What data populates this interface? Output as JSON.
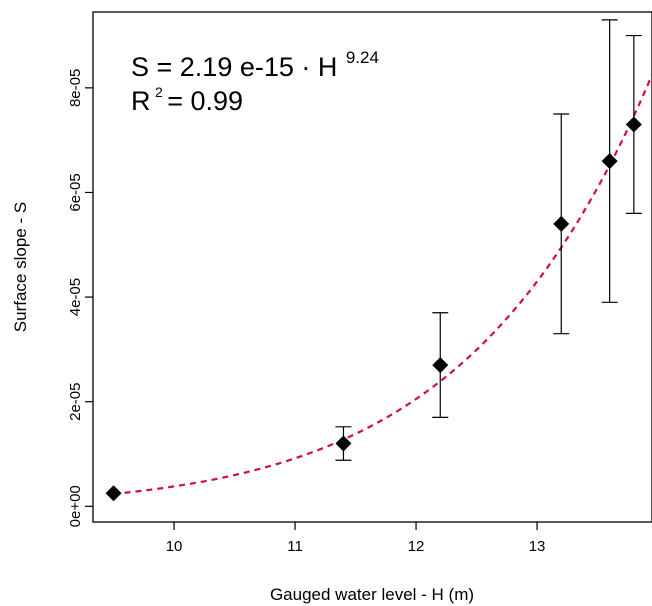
{
  "chart_data": {
    "type": "scatter",
    "title": "",
    "xlabel": "Gauged water level - H (m)",
    "ylabel": "Surface slope - S",
    "xlim": [
      9.33,
      13.95
    ],
    "ylim": [
      -3e-06,
      9.45e-05
    ],
    "x_ticks": [
      {
        "value": 10,
        "label": "10"
      },
      {
        "value": 11,
        "label": "11"
      },
      {
        "value": 12,
        "label": "12"
      },
      {
        "value": 13,
        "label": "13"
      }
    ],
    "y_ticks": [
      {
        "value": 0,
        "label": "0e+00"
      },
      {
        "value": 2e-05,
        "label": "2e-05"
      },
      {
        "value": 4e-05,
        "label": "4e-05"
      },
      {
        "value": 6e-05,
        "label": "6e-05"
      },
      {
        "value": 8e-05,
        "label": "8e-05"
      }
    ],
    "grid": false,
    "points": [
      {
        "x": 9.5,
        "y": 2.5e-06,
        "err_low": null,
        "err_high": null
      },
      {
        "x": 11.4,
        "y": 1.2e-05,
        "err_low": 8.8e-06,
        "err_high": 1.52e-05
      },
      {
        "x": 12.2,
        "y": 2.7e-05,
        "err_low": 1.7e-05,
        "err_high": 3.7e-05
      },
      {
        "x": 13.2,
        "y": 5.4e-05,
        "err_low": 3.3e-05,
        "err_high": 7.5e-05
      },
      {
        "x": 13.6,
        "y": 6.6e-05,
        "err_low": 3.9e-05,
        "err_high": 9.3e-05
      },
      {
        "x": 13.8,
        "y": 7.3e-05,
        "err_low": 5.6e-05,
        "err_high": 9e-05
      }
    ],
    "marker_color": "#000000",
    "fit": {
      "coefficient": 2.19e-15,
      "exponent": 9.24,
      "color": "#d0103a",
      "style": "dashed"
    },
    "annotation": {
      "equation_main": "S = 2.19 e-15 · H",
      "equation_exponent": "9.24",
      "r2_prefix": "R",
      "r2_sup": "2",
      "r2_value": " = 0.99"
    }
  }
}
